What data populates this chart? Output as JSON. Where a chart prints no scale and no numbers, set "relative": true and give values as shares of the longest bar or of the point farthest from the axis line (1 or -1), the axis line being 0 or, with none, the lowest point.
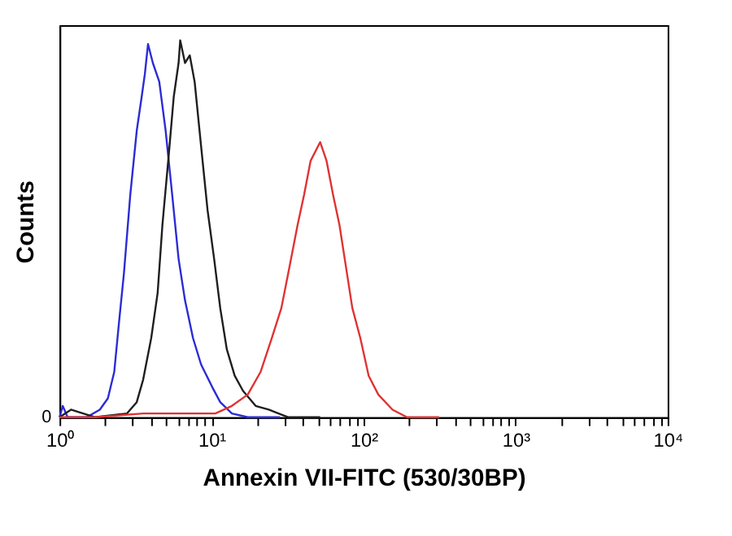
{
  "chart_data": {
    "type": "line",
    "relative": true,
    "xlabel": "Annexin VII-FITC (530/30BP)",
    "ylabel": "Counts",
    "log": "x",
    "grid": false,
    "xlim": [
      1,
      10000
    ],
    "xticks": [
      {
        "value": 1,
        "label": "10⁰"
      },
      {
        "value": 2,
        "label": null
      },
      {
        "value": 3,
        "label": null
      },
      {
        "value": 4,
        "label": null
      },
      {
        "value": 5,
        "label": null
      },
      {
        "value": 6,
        "label": null
      },
      {
        "value": 7,
        "label": null
      },
      {
        "value": 8,
        "label": null
      },
      {
        "value": 9,
        "label": null
      },
      {
        "value": 10,
        "label": "10¹"
      },
      {
        "value": 20,
        "label": null
      },
      {
        "value": 30,
        "label": null
      },
      {
        "value": 40,
        "label": null
      },
      {
        "value": 50,
        "label": null
      },
      {
        "value": 60,
        "label": null
      },
      {
        "value": 70,
        "label": null
      },
      {
        "value": 80,
        "label": null
      },
      {
        "value": 90,
        "label": null
      },
      {
        "value": 100,
        "label": "10²"
      },
      {
        "value": 200,
        "label": null
      },
      {
        "value": 300,
        "label": null
      },
      {
        "value": 400,
        "label": null
      },
      {
        "value": 500,
        "label": null
      },
      {
        "value": 600,
        "label": null
      },
      {
        "value": 700,
        "label": null
      },
      {
        "value": 800,
        "label": null
      },
      {
        "value": 900,
        "label": null
      },
      {
        "value": 1000,
        "label": "10³"
      },
      {
        "value": 2000,
        "label": null
      },
      {
        "value": 3000,
        "label": null
      },
      {
        "value": 4000,
        "label": null
      },
      {
        "value": 5000,
        "label": null
      },
      {
        "value": 6000,
        "label": null
      },
      {
        "value": 7000,
        "label": null
      },
      {
        "value": 8000,
        "label": null
      },
      {
        "value": 9000,
        "label": null
      },
      {
        "value": 10000,
        "label": "10⁴"
      }
    ],
    "annotations": [
      "0"
    ],
    "series": [
      {
        "color": "#2b2bd6",
        "x": [
          1.0,
          1.05,
          1.13,
          1.51,
          1.84,
          2.08,
          2.29,
          2.46,
          2.65,
          2.92,
          3.22,
          3.47,
          3.64,
          3.82,
          4.11,
          4.53,
          4.99,
          5.51,
          6.07,
          6.69,
          7.55,
          8.53,
          10.1,
          11.4,
          13.6,
          17.3,
          28.2
        ],
        "values": [
          0,
          0.03,
          0,
          0,
          0.02,
          0.05,
          0.12,
          0.25,
          0.38,
          0.59,
          0.76,
          0.85,
          0.91,
          0.99,
          0.94,
          0.89,
          0.76,
          0.59,
          0.42,
          0.31,
          0.21,
          0.14,
          0.08,
          0.04,
          0.01,
          0,
          0
        ]
      },
      {
        "color": "#1e1e1e",
        "x": [
          1.0,
          1.19,
          1.71,
          2.78,
          3.22,
          3.55,
          4.01,
          4.42,
          4.75,
          5.24,
          5.64,
          6.07,
          6.22,
          6.69,
          7.19,
          7.74,
          8.53,
          9.41,
          10.4,
          11.4,
          12.6,
          14.2,
          16.1,
          19.5,
          23.8,
          31.8,
          51.8
        ],
        "values": [
          0,
          0.02,
          0,
          0.01,
          0.04,
          0.1,
          0.21,
          0.33,
          0.51,
          0.7,
          0.85,
          0.94,
          1.0,
          0.94,
          0.96,
          0.89,
          0.72,
          0.55,
          0.42,
          0.29,
          0.18,
          0.11,
          0.07,
          0.03,
          0.02,
          0,
          0
        ]
      },
      {
        "color": "#e03232",
        "x": [
          1.0,
          1.71,
          3.55,
          7.38,
          10.6,
          13.6,
          17.3,
          21.0,
          24.9,
          28.8,
          32.6,
          36.8,
          40.6,
          44.8,
          51.8,
          57.1,
          63.0,
          69.4,
          76.5,
          84.3,
          95.2,
          108,
          125,
          155,
          193,
          314
        ],
        "values": [
          0,
          0,
          0.01,
          0.01,
          0.01,
          0.03,
          0.06,
          0.12,
          0.21,
          0.29,
          0.4,
          0.51,
          0.59,
          0.68,
          0.73,
          0.68,
          0.59,
          0.51,
          0.4,
          0.29,
          0.21,
          0.11,
          0.06,
          0.02,
          0,
          0
        ]
      }
    ]
  }
}
